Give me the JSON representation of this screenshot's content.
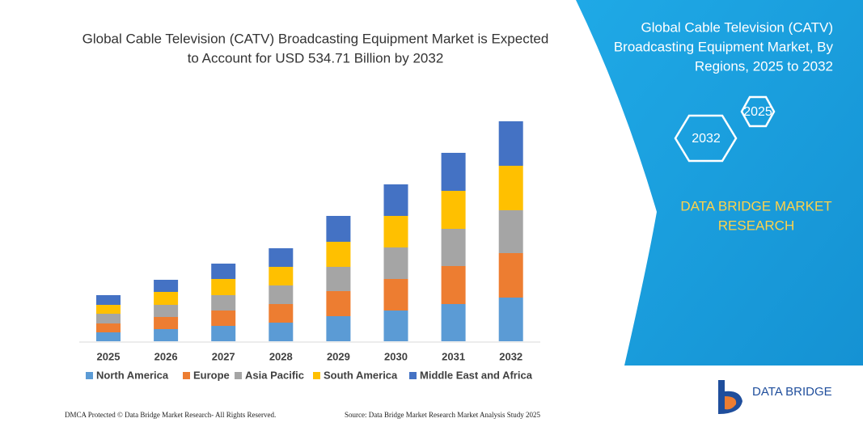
{
  "chart_data": {
    "type": "stacked_bar",
    "title": [
      "Global Cable Television (CATV) Broadcasting Equipment Market is Expected",
      "to Account for USD 534.71 Billion by 2032"
    ],
    "categories": [
      "2025",
      "2026",
      "2027",
      "2028",
      "2029",
      "2030",
      "2031",
      "2032"
    ],
    "series": [
      {
        "name": "North America",
        "color": "#5b9bd5",
        "values": [
          11,
          15,
          19,
          23,
          31,
          38,
          46,
          54
        ]
      },
      {
        "name": "Europe",
        "color": "#ed7d31",
        "values": [
          11,
          15,
          19,
          23,
          31,
          39,
          47,
          55
        ]
      },
      {
        "name": "Asia Pacific",
        "color": "#a5a5a5",
        "values": [
          12,
          15,
          19,
          23,
          30,
          39,
          46,
          53
        ]
      },
      {
        "name": "South America",
        "color": "#ffc000",
        "values": [
          11,
          16,
          20,
          23,
          31,
          39,
          47,
          55
        ]
      },
      {
        "name": "Middle East and Africa",
        "color": "#4472c4",
        "values": [
          12,
          15,
          19,
          23,
          32,
          39,
          47,
          55
        ]
      }
    ]
  },
  "panel": {
    "title": [
      "Global Cable Television (CATV)",
      "Broadcasting Equipment Market, By",
      "Regions, 2025 to 2032"
    ],
    "hexagons": [
      "2025",
      "2032"
    ],
    "brand": [
      "DATA BRIDGE MARKET",
      "RESEARCH"
    ],
    "logo": "DATA BRIDGE"
  },
  "footer": {
    "left": "DMCA Protected © Data Bridge Market Research-  All Rights Reserved.",
    "right": "Source: Data Bridge Market Research  Market Analysis Study 2025"
  }
}
